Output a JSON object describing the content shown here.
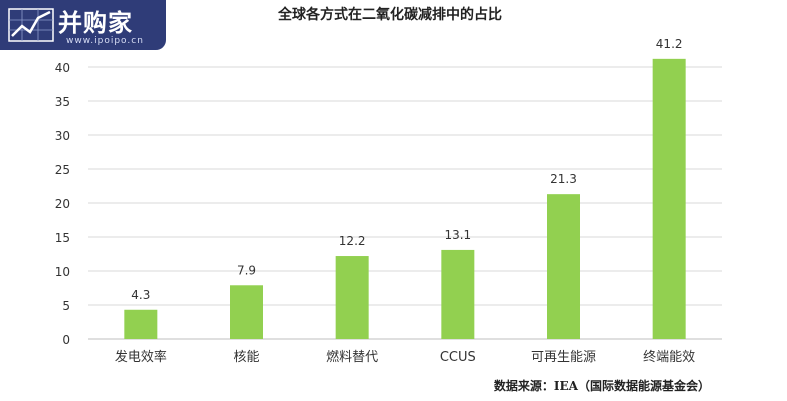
{
  "watermark": {
    "name": "并购家",
    "site": "www.ipoipo.cn"
  },
  "chart_data": {
    "type": "bar",
    "title": "全球各方式在二氧化碳减排中的占比",
    "categories": [
      "发电效率",
      "核能",
      "燃料替代",
      "CCUS",
      "可再生能源",
      "终端能效"
    ],
    "values": [
      4.3,
      7.9,
      12.2,
      13.1,
      21.3,
      41.2
    ],
    "value_labels": [
      "4.3",
      "7.9",
      "12.2",
      "13.1",
      "21.3",
      "41.2"
    ],
    "ylim": [
      0,
      45
    ],
    "yticks": [
      0,
      5,
      10,
      15,
      20,
      25,
      30,
      35,
      40
    ],
    "xlabel": "",
    "ylabel": "",
    "grid": true,
    "bar_color": "#92d050",
    "source": "数据来源：IEA（国际数据能源基金会）"
  }
}
